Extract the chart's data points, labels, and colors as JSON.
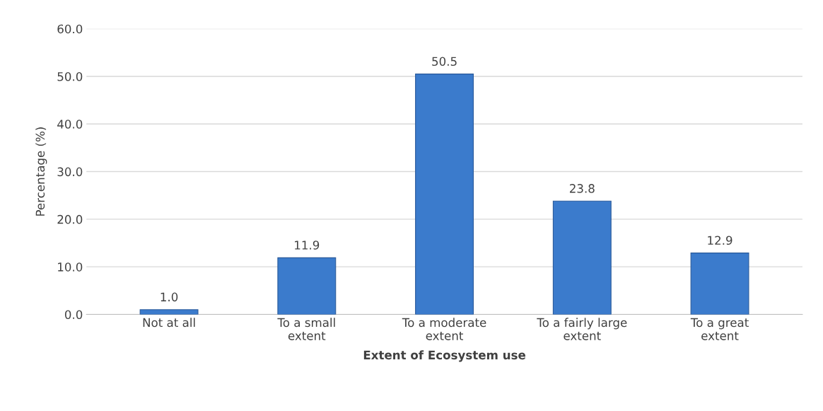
{
  "chart_data": {
    "type": "bar",
    "xlabel": "Extent of Ecosystem use",
    "ylabel": "Percentage (%)",
    "categories": [
      "Not at all",
      "To a small\nextent",
      "To a moderate\nextent",
      "To a fairly large\nextent",
      "To a great\nextent"
    ],
    "values": [
      1.0,
      11.9,
      50.5,
      23.8,
      12.9
    ],
    "color": "#3b7bcc",
    "ylim": [
      0,
      60
    ],
    "yticks": [
      {
        "value": 0,
        "label": "0.0"
      },
      {
        "value": 10,
        "label": "10.0"
      },
      {
        "value": 20,
        "label": "20.0"
      },
      {
        "value": 30,
        "label": "30.0"
      },
      {
        "value": 40,
        "label": "40.0"
      },
      {
        "value": 50,
        "label": "50.0"
      },
      {
        "value": 60,
        "label": "60.0"
      }
    ],
    "grid": "y",
    "value_labels": [
      "1.0",
      "11.9",
      "50.5",
      "23.8",
      "12.9"
    ]
  }
}
